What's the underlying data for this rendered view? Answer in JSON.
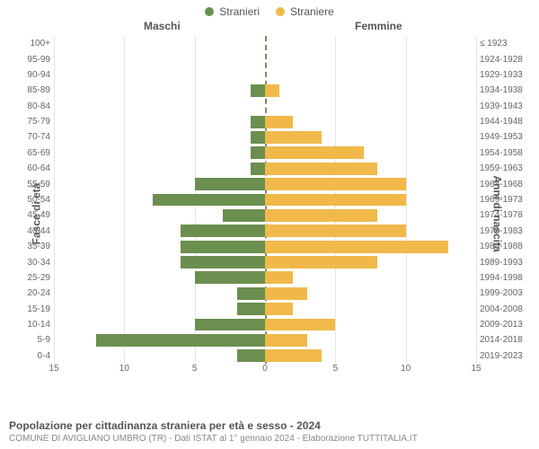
{
  "legend": {
    "male": {
      "label": "Stranieri",
      "color": "#6b8f4f"
    },
    "female": {
      "label": "Straniere",
      "color": "#f0b94a"
    }
  },
  "headers": {
    "left": "Maschi",
    "right": "Femmine"
  },
  "axis_titles": {
    "left": "Fasce di età",
    "right": "Anni di nascita"
  },
  "chart": {
    "type": "population-pyramid",
    "xmax": 15,
    "xticks": [
      15,
      10,
      5,
      0,
      5,
      10,
      15
    ],
    "background_color": "#ffffff",
    "grid_color": "#e5e5e5",
    "centerline_color": "#888855",
    "bar_color_male": "#6b8f4f",
    "bar_color_female": "#f0b94a",
    "label_fontsize": 10,
    "rows": [
      {
        "age": "100+",
        "birth": "≤ 1923",
        "m": 0,
        "f": 0
      },
      {
        "age": "95-99",
        "birth": "1924-1928",
        "m": 0,
        "f": 0
      },
      {
        "age": "90-94",
        "birth": "1929-1933",
        "m": 0,
        "f": 0
      },
      {
        "age": "85-89",
        "birth": "1934-1938",
        "m": 1,
        "f": 1
      },
      {
        "age": "80-84",
        "birth": "1939-1943",
        "m": 0,
        "f": 0
      },
      {
        "age": "75-79",
        "birth": "1944-1948",
        "m": 1,
        "f": 2
      },
      {
        "age": "70-74",
        "birth": "1949-1953",
        "m": 1,
        "f": 4
      },
      {
        "age": "65-69",
        "birth": "1954-1958",
        "m": 1,
        "f": 7
      },
      {
        "age": "60-64",
        "birth": "1959-1963",
        "m": 1,
        "f": 8
      },
      {
        "age": "55-59",
        "birth": "1964-1968",
        "m": 5,
        "f": 10
      },
      {
        "age": "50-54",
        "birth": "1969-1973",
        "m": 8,
        "f": 10
      },
      {
        "age": "45-49",
        "birth": "1974-1978",
        "m": 3,
        "f": 8
      },
      {
        "age": "40-44",
        "birth": "1979-1983",
        "m": 6,
        "f": 10
      },
      {
        "age": "35-39",
        "birth": "1984-1988",
        "m": 6,
        "f": 13
      },
      {
        "age": "30-34",
        "birth": "1989-1993",
        "m": 6,
        "f": 8
      },
      {
        "age": "25-29",
        "birth": "1994-1998",
        "m": 5,
        "f": 2
      },
      {
        "age": "20-24",
        "birth": "1999-2003",
        "m": 2,
        "f": 3
      },
      {
        "age": "15-19",
        "birth": "2004-2008",
        "m": 2,
        "f": 2
      },
      {
        "age": "10-14",
        "birth": "2009-2013",
        "m": 5,
        "f": 5
      },
      {
        "age": "5-9",
        "birth": "2014-2018",
        "m": 12,
        "f": 3
      },
      {
        "age": "0-4",
        "birth": "2019-2023",
        "m": 2,
        "f": 4
      }
    ]
  },
  "footer": {
    "title": "Popolazione per cittadinanza straniera per età e sesso - 2024",
    "subtitle": "COMUNE DI AVIGLIANO UMBRO (TR) - Dati ISTAT al 1° gennaio 2024 - Elaborazione TUTTITALIA.IT"
  }
}
